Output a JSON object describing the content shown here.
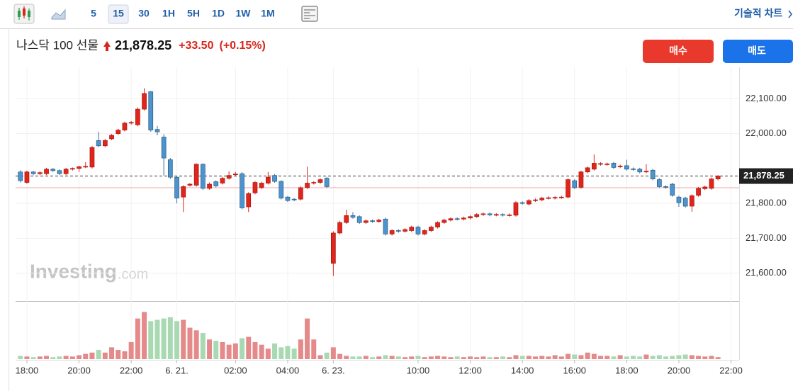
{
  "toolbar": {
    "intervals": [
      "5",
      "15",
      "30",
      "1H",
      "5H",
      "1D",
      "1W",
      "1M"
    ],
    "selected": "15",
    "technical_chart": "기술적 차트"
  },
  "header": {
    "name": "나스닥 100 선물",
    "price": "21,878.25",
    "change": "+33.50",
    "change_pct": "(+0.15%)"
  },
  "buttons": {
    "buy": "매수",
    "sell": "매도"
  },
  "watermark": {
    "brand": "Investing",
    "suffix": ".com"
  },
  "chart_data": {
    "type": "candlestick",
    "grid": true,
    "up_color": "#e0251b",
    "down_color": "#4d94cf",
    "volume_up_color": "#e48a8a",
    "volume_down_color": "#a9d9b2",
    "categories": [
      null,
      "18:00",
      null,
      null,
      null,
      null,
      null,
      null,
      null,
      "20:00",
      null,
      null,
      null,
      null,
      null,
      null,
      null,
      "22:00",
      null,
      null,
      null,
      null,
      null,
      null,
      "6. 21.",
      null,
      null,
      null,
      null,
      null,
      null,
      null,
      null,
      "02:00",
      null,
      null,
      null,
      null,
      null,
      null,
      null,
      "04:00",
      null,
      null,
      null,
      null,
      null,
      null,
      "6. 23.",
      null,
      null,
      null,
      null,
      null,
      null,
      null,
      null,
      null,
      null,
      null,
      null,
      "10:00",
      null,
      null,
      null,
      null,
      null,
      null,
      null,
      "12:00",
      null,
      null,
      null,
      null,
      null,
      null,
      null,
      "14:00",
      null,
      null,
      null,
      null,
      null,
      null,
      null,
      "16:00",
      null,
      null,
      null,
      null,
      null,
      null,
      null,
      "18:00",
      null,
      null,
      null,
      null,
      null,
      null,
      null,
      "20:00",
      null,
      null,
      null,
      null,
      null,
      null,
      null,
      "22:00"
    ],
    "open": [
      21890,
      21860,
      21890,
      21885,
      21885,
      21898,
      21894,
      21885,
      21898,
      21900,
      21905,
      21904,
      21980,
      21965,
      21985,
      22000,
      22010,
      22030,
      22025,
      22070,
      22120,
      22012,
      21990,
      21925,
      21875,
      21818,
      21852,
      21852,
      21912,
      21843,
      21862,
      21858,
      21872,
      21882,
      21885,
      21790,
      21830,
      21845,
      21858,
      21880,
      21863,
      21818,
      21812,
      21812,
      21845,
      21858,
      21860,
      21872,
      21628,
      21715,
      21745,
      21765,
      21762,
      21745,
      21750,
      21748,
      21755,
      21712,
      21722,
      21720,
      21722,
      21732,
      21712,
      21722,
      21732,
      21745,
      21752,
      21756,
      21755,
      21758,
      21762,
      21768,
      21770,
      21767,
      21768,
      21766,
      21766,
      21802,
      21798,
      21808,
      21810,
      21815,
      21815,
      21817,
      21818,
      21865,
      21846,
      21890,
      21898,
      21912,
      21912,
      21915,
      21905,
      21908,
      21899,
      21898,
      21890,
      21895,
      21868,
      21848,
      21855,
      21818,
      21815,
      21792,
      21823,
      21842,
      21843,
      21870,
      null,
      null
    ],
    "high": [
      21895,
      21894,
      21893,
      21892,
      21902,
      21901,
      21897,
      21902,
      21903,
      21908,
      21918,
      21965,
      22005,
      21985,
      21999,
      22014,
      22034,
      22036,
      22075,
      22130,
      22122,
      22022,
      21998,
      21930,
      21878,
      21852,
      21858,
      21915,
      21915,
      21860,
      21866,
      21876,
      21892,
      21890,
      21890,
      21832,
      21864,
      21862,
      21890,
      21884,
      21866,
      21821,
      21815,
      21849,
      21905,
      21864,
      21872,
      21876,
      21720,
      21750,
      21782,
      21775,
      21766,
      21754,
      21754,
      21756,
      21759,
      21726,
      21726,
      21729,
      21736,
      21736,
      21726,
      21736,
      21749,
      21756,
      21760,
      21760,
      21762,
      21766,
      21772,
      21774,
      21774,
      21772,
      21772,
      21771,
      21806,
      21806,
      21812,
      21814,
      21819,
      21820,
      21821,
      21822,
      21872,
      21869,
      21894,
      21906,
      21940,
      21918,
      21917,
      21919,
      21911,
      21925,
      21903,
      21902,
      21912,
      21899,
      21872,
      21852,
      21859,
      21822,
      21819,
      21826,
      21847,
      21851,
      21874,
      21881,
      null,
      null
    ],
    "low": [
      21860,
      21856,
      21881,
      21881,
      21881,
      21890,
      21881,
      21881,
      21894,
      21890,
      21901,
      21900,
      21961,
      21961,
      21981,
      21996,
      22006,
      22026,
      22021,
      22066,
      22005,
      21995,
      21880,
      21870,
      21800,
      21775,
      21848,
      21848,
      21838,
      21839,
      21846,
      21854,
      21868,
      21878,
      21783,
      21775,
      21826,
      21841,
      21854,
      21859,
      21811,
      21804,
      21806,
      21808,
      21841,
      21854,
      21856,
      21844,
      21592,
      21711,
      21741,
      21756,
      21741,
      21741,
      21744,
      21744,
      21708,
      21708,
      21716,
      21716,
      21718,
      21708,
      21708,
      21718,
      21728,
      21741,
      21748,
      21751,
      21751,
      21754,
      21758,
      21764,
      21763,
      21763,
      21762,
      21762,
      21762,
      21796,
      21794,
      21804,
      21806,
      21811,
      21811,
      21813,
      21814,
      21841,
      21842,
      21886,
      21894,
      21908,
      21908,
      21899,
      21901,
      21894,
      21893,
      21886,
      21886,
      21866,
      21844,
      21842,
      21819,
      21790,
      21788,
      21776,
      21819,
      21838,
      21839,
      21866,
      null,
      null
    ],
    "close": [
      21865,
      21890,
      21885,
      21888,
      21898,
      21894,
      21885,
      21898,
      21900,
      21905,
      21906,
      21960,
      21965,
      21980,
      21995,
      22010,
      22030,
      22032,
      22070,
      22115,
      22010,
      22005,
      21930,
      21875,
      21815,
      21848,
      21855,
      21912,
      21843,
      21855,
      21850,
      21872,
      21880,
      21884,
      21787,
      21828,
      21860,
      21858,
      21875,
      21863,
      21815,
      21808,
      21810,
      21845,
      21858,
      21860,
      21868,
      21848,
      21715,
      21745,
      21765,
      21760,
      21745,
      21750,
      21748,
      21752,
      21712,
      21722,
      21720,
      21725,
      21732,
      21712,
      21722,
      21732,
      21745,
      21752,
      21756,
      21755,
      21758,
      21762,
      21768,
      21770,
      21767,
      21768,
      21766,
      21767,
      21802,
      21800,
      21808,
      21810,
      21815,
      21816,
      21817,
      21818,
      21868,
      21845,
      21890,
      21902,
      21915,
      21914,
      21913,
      21903,
      21907,
      21898,
      21897,
      21890,
      21892,
      21870,
      21848,
      21846,
      21823,
      21802,
      21792,
      21822,
      21843,
      21847,
      21870,
      21878.25,
      null,
      null
    ],
    "volume": [
      5,
      4,
      3,
      4,
      5,
      3,
      4,
      5,
      4,
      6,
      8,
      10,
      14,
      10,
      18,
      14,
      12,
      26,
      62,
      72,
      58,
      60,
      62,
      64,
      58,
      60,
      48,
      44,
      40,
      30,
      28,
      26,
      22,
      24,
      32,
      34,
      26,
      22,
      16,
      24,
      18,
      20,
      16,
      30,
      62,
      30,
      6,
      10,
      18,
      8,
      5,
      4,
      4,
      5,
      3,
      4,
      6,
      5,
      4,
      3,
      4,
      5,
      3,
      4,
      5,
      4,
      3,
      4,
      3,
      4,
      3,
      4,
      3,
      3,
      4,
      3,
      6,
      5,
      5,
      4,
      5,
      4,
      6,
      4,
      8,
      7,
      6,
      10,
      8,
      5,
      5,
      4,
      6,
      4,
      5,
      4,
      7,
      5,
      6,
      4,
      5,
      6,
      7,
      6,
      5,
      4,
      5,
      3,
      null,
      null
    ],
    "ylim": [
      21520,
      22190
    ],
    "yticks": [
      {
        "value": 21600,
        "label": "21,600.00"
      },
      {
        "value": 21700,
        "label": "21,700.00"
      },
      {
        "value": 21800,
        "label": "21,800.00"
      },
      {
        "value": 22000,
        "label": "22,000.00"
      },
      {
        "value": 22100,
        "label": "22,100.00"
      }
    ],
    "volume_ylim": [
      0,
      80
    ],
    "last_price": {
      "value": 21878.25,
      "label": "21,878.25"
    },
    "prev_close": 21844.75
  }
}
